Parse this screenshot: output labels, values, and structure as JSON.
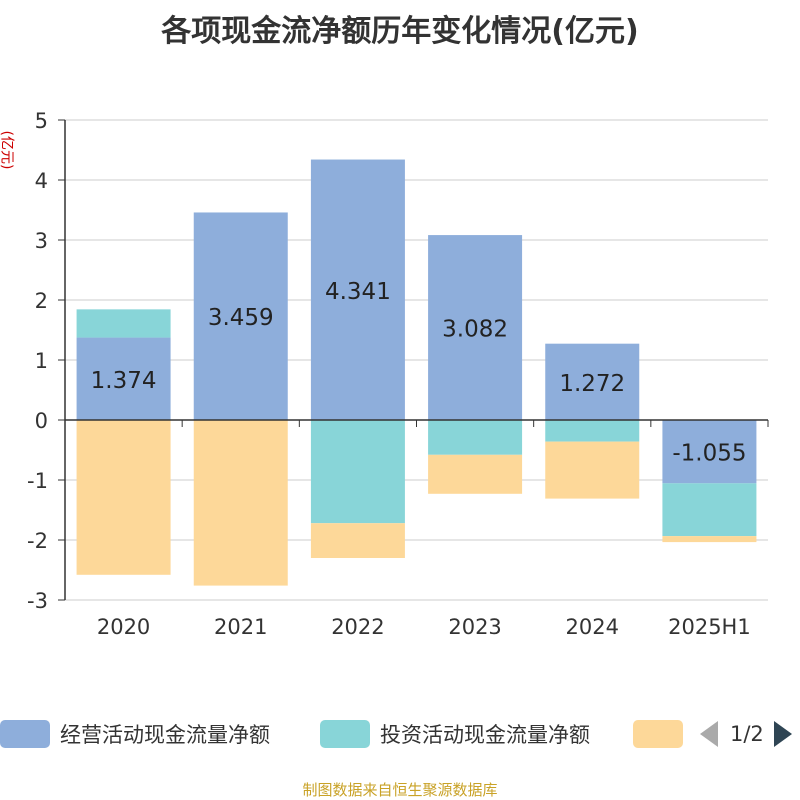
{
  "chart_data": {
    "type": "bar",
    "stacked": true,
    "title": "各项现金流净额历年变化情况(亿元)",
    "unit_label": "(亿元)",
    "categories": [
      "2020",
      "2021",
      "2022",
      "2023",
      "2024",
      "2025H1"
    ],
    "ylim": [
      -3,
      5
    ],
    "yticks": [
      5,
      4,
      3,
      2,
      1,
      0,
      -1,
      -2,
      -3
    ],
    "grid": true,
    "legend_position": "bottom",
    "series": [
      {
        "name": "经营活动现金流量净额",
        "color": "#8eaedb",
        "values": [
          1.374,
          3.459,
          4.341,
          3.082,
          1.272,
          -1.055
        ],
        "labels": [
          "1.374",
          "3.459",
          "4.341",
          "3.082",
          "1.272",
          "-1.055"
        ]
      },
      {
        "name": "投资活动现金流量净额",
        "color": "#88d5d8",
        "values": [
          0.47,
          0.0,
          -1.72,
          -0.58,
          -0.36,
          -0.88
        ]
      },
      {
        "name": "",
        "color": "#fdd899",
        "values": [
          -2.58,
          -2.76,
          -0.58,
          -0.65,
          -0.95,
          -0.1
        ]
      }
    ]
  },
  "legend": {
    "page_text": "1/2"
  },
  "footer": "制图数据来自恒生聚源数据库"
}
